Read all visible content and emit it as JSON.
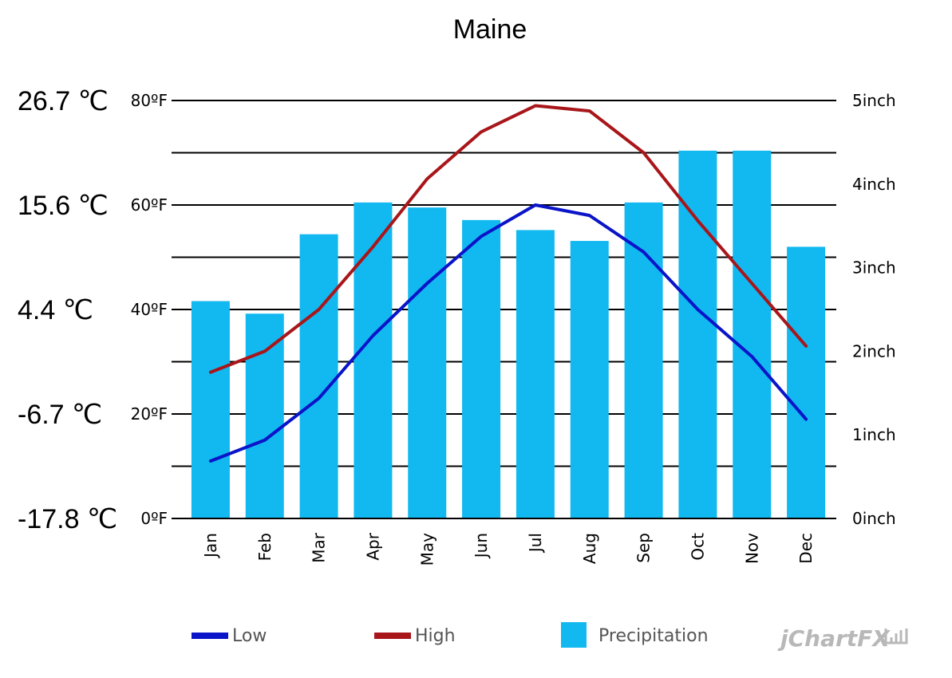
{
  "chart_data": {
    "type": "bar",
    "title": "Maine",
    "categories": [
      "Jan",
      "Feb",
      "Mar",
      "Apr",
      "May",
      "Jun",
      "Jul",
      "Aug",
      "Sep",
      "Oct",
      "Nov",
      "Dec"
    ],
    "series": [
      {
        "name": "Low",
        "type": "line",
        "axis": "left",
        "color": "#0a14c8",
        "values": [
          11,
          15,
          23,
          35,
          45,
          54,
          60,
          58,
          51,
          40,
          31,
          19
        ]
      },
      {
        "name": "High",
        "type": "line",
        "axis": "left",
        "color": "#a8161a",
        "values": [
          28,
          32,
          40,
          52,
          65,
          74,
          79,
          78,
          70,
          57,
          45,
          33
        ]
      },
      {
        "name": "Precipitation",
        "type": "bar",
        "axis": "right",
        "color": "#12b8f0",
        "values": [
          2.6,
          2.45,
          3.4,
          3.78,
          3.72,
          3.57,
          3.45,
          3.32,
          3.78,
          4.4,
          4.4,
          3.25
        ]
      }
    ],
    "left_axis": {
      "ylim": [
        0,
        80
      ],
      "ticks": [
        0,
        20,
        40,
        60,
        80
      ],
      "tick_labels": [
        "0ºF",
        "20ºF",
        "40ºF",
        "60ºF",
        "80ºF"
      ]
    },
    "right_axis": {
      "ylim": [
        0,
        5
      ],
      "ticks": [
        0,
        1,
        2,
        3,
        4,
        5
      ],
      "tick_labels": [
        "0inch",
        "1inch",
        "2inch",
        "3inch",
        "4inch",
        "5inch"
      ]
    },
    "celsius_labels": [
      "-17.8 ℃",
      "-6.7 ℃",
      "4.4 ℃",
      "15.6 ℃",
      "26.7 ℃"
    ],
    "grid": true,
    "legend_position": "bottom",
    "legend": [
      "Low",
      "High",
      "Precipitation"
    ]
  },
  "watermark": "jChartFX"
}
